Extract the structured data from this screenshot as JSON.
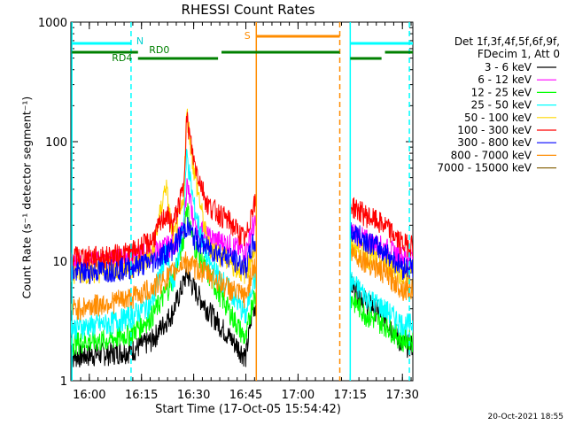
{
  "title": "RHESSI Count Rates",
  "xlabel": "Start Time (17-Oct-05 15:54:42)",
  "ylabel": "Count Rate (s⁻¹ detector segment⁻¹)",
  "legend_header": [
    "Det 1f,3f,4f,5f,6f,9f,",
    "FDecim 1, Att 0"
  ],
  "footer": "20-Oct-2021 18:55",
  "chart_data": {
    "type": "line",
    "title": "RHESSI Count Rates",
    "xlabel": "Start Time (17-Oct-05 15:54:42)",
    "ylabel": "Count Rate (s⁻¹ detector segment⁻¹)",
    "y_scale": "log",
    "ylim": [
      1,
      1000
    ],
    "xlim_minutes": [
      "15:54:42",
      "17:33:00"
    ],
    "x_ticks": [
      "16:00",
      "16:15",
      "16:30",
      "16:45",
      "17:00",
      "17:15",
      "17:30"
    ],
    "y_ticks": [
      "1",
      "10",
      "100",
      "1000"
    ],
    "grid": false,
    "legend_position": "right",
    "series": [
      {
        "name": "3 - 6 keV",
        "color": "#000000",
        "x": [
          "15:55",
          "16:05",
          "16:12",
          "16:18",
          "16:24",
          "16:27",
          "16:28",
          "16:30",
          "16:34",
          "16:40",
          "16:45",
          "16:47",
          "17:15",
          "17:20",
          "17:25",
          "17:30"
        ],
        "y": [
          1.6,
          1.7,
          1.8,
          2.2,
          3.8,
          6.5,
          8.0,
          6.0,
          4.0,
          2.4,
          1.6,
          4.2,
          6.5,
          4.5,
          3.5,
          2.0
        ]
      },
      {
        "name": "6 - 12 keV",
        "color": "#ff00ff",
        "x": [
          "15:55",
          "16:05",
          "16:12",
          "16:18",
          "16:24",
          "16:27",
          "16:28",
          "16:30",
          "16:34",
          "16:40",
          "16:45",
          "16:47",
          "17:15",
          "17:20",
          "17:25",
          "17:30"
        ],
        "y": [
          10,
          10,
          11,
          12,
          14,
          18,
          45,
          22,
          16,
          14,
          12,
          20,
          18,
          15,
          13,
          11
        ]
      },
      {
        "name": "12 - 25 keV",
        "color": "#00ff00",
        "x": [
          "15:55",
          "16:05",
          "16:12",
          "16:18",
          "16:24",
          "16:27",
          "16:28",
          "16:30",
          "16:34",
          "16:40",
          "16:45",
          "16:47",
          "17:15",
          "17:20",
          "17:25",
          "17:30"
        ],
        "y": [
          2.1,
          2.2,
          2.5,
          3.5,
          7,
          15,
          30,
          14,
          8,
          4,
          2.2,
          5,
          5,
          3.5,
          3,
          2.2
        ]
      },
      {
        "name": "25 - 50 keV",
        "color": "#00ffff",
        "x": [
          "15:55",
          "16:05",
          "16:12",
          "16:18",
          "16:22",
          "16:24",
          "16:27",
          "16:28",
          "16:30",
          "16:34",
          "16:40",
          "16:45",
          "16:47",
          "17:15",
          "17:20",
          "17:25",
          "17:30"
        ],
        "y": [
          2.8,
          3.0,
          3.5,
          4.5,
          12,
          6,
          20,
          80,
          30,
          10,
          6,
          3.5,
          7,
          7,
          5,
          4,
          3
        ]
      },
      {
        "name": "50 - 100 keV",
        "color": "#ffd700",
        "x": [
          "15:55",
          "16:05",
          "16:12",
          "16:18",
          "16:22",
          "16:24",
          "16:27",
          "16:28",
          "16:30",
          "16:34",
          "16:40",
          "16:45",
          "16:47",
          "17:15",
          "17:20",
          "17:25",
          "17:30"
        ],
        "y": [
          8,
          8.5,
          9,
          11,
          45,
          15,
          30,
          180,
          60,
          14,
          10,
          8,
          12,
          14,
          11,
          10,
          8
        ]
      },
      {
        "name": "100 - 300 keV",
        "color": "#ff0000",
        "x": [
          "15:55",
          "16:05",
          "16:12",
          "16:18",
          "16:22",
          "16:24",
          "16:27",
          "16:28",
          "16:30",
          "16:34",
          "16:40",
          "16:45",
          "16:47",
          "17:15",
          "17:20",
          "17:25",
          "17:30"
        ],
        "y": [
          11,
          11,
          12,
          15,
          25,
          20,
          40,
          160,
          70,
          30,
          22,
          15,
          30,
          30,
          24,
          20,
          14
        ]
      },
      {
        "name": "300 - 800 keV",
        "color": "#0000ff",
        "x": [
          "15:55",
          "16:05",
          "16:12",
          "16:18",
          "16:24",
          "16:27",
          "16:28",
          "16:30",
          "16:34",
          "16:40",
          "16:45",
          "16:47",
          "17:15",
          "17:20",
          "17:25",
          "17:30"
        ],
        "y": [
          8,
          8.5,
          9,
          10,
          13,
          18,
          20,
          16,
          13,
          11,
          9,
          14,
          18,
          15,
          12,
          9
        ]
      },
      {
        "name": "800 - 7000 keV",
        "color": "#ff8c00",
        "x": [
          "15:55",
          "16:05",
          "16:12",
          "16:18",
          "16:24",
          "16:27",
          "16:28",
          "16:30",
          "16:34",
          "16:40",
          "16:45",
          "16:47",
          "17:15",
          "17:20",
          "17:25",
          "17:30"
        ],
        "y": [
          4,
          4.5,
          5,
          6,
          8,
          10,
          10,
          9,
          8,
          6,
          5,
          9,
          12,
          10,
          8,
          6
        ]
      },
      {
        "name": "7000 - 15000 keV",
        "color": "#8b6914",
        "x": [],
        "y": []
      }
    ],
    "state_bars": [
      {
        "label": "N",
        "color": "#00ffff",
        "segments": [
          [
            "15:55",
            "16:12"
          ],
          [
            "17:15",
            "17:33"
          ]
        ]
      },
      {
        "label": "S",
        "color": "#ff8c00",
        "segments": [
          [
            "16:48",
            "17:12"
          ]
        ]
      },
      {
        "label": "RD0",
        "color": "#008000",
        "segments": [
          [
            "15:55",
            "16:14"
          ],
          [
            "16:38",
            "17:12"
          ],
          [
            "17:25",
            "17:33"
          ]
        ]
      },
      {
        "label": "RD4",
        "color": "#008000",
        "segments": [
          [
            "16:14",
            "16:37"
          ],
          [
            "17:15",
            "17:24"
          ]
        ]
      }
    ],
    "vertical_markers": [
      {
        "time": "15:55",
        "color": "#00ffff",
        "style": "solid"
      },
      {
        "time": "16:12",
        "color": "#00ffff",
        "style": "dashed"
      },
      {
        "time": "16:48",
        "color": "#ff8c00",
        "style": "solid"
      },
      {
        "time": "17:12",
        "color": "#ff8c00",
        "style": "dashed"
      },
      {
        "time": "17:15",
        "color": "#00ffff",
        "style": "solid"
      },
      {
        "time": "17:32",
        "color": "#00ffff",
        "style": "dashed"
      }
    ]
  }
}
